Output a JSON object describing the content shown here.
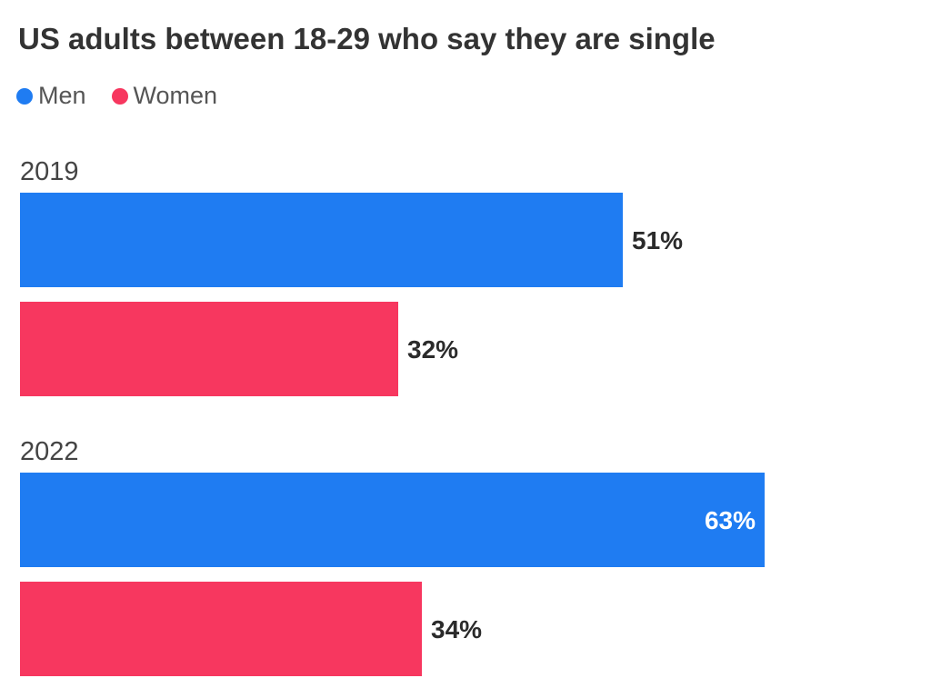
{
  "chart_data": {
    "type": "bar",
    "orientation": "horizontal",
    "title": "US adults between 18-29 who say they are single",
    "categories": [
      "2019",
      "2022"
    ],
    "series": [
      {
        "name": "Men",
        "values": [
          51,
          63
        ],
        "labels": [
          "51%",
          "63%"
        ],
        "color": "#1f7cf2"
      },
      {
        "name": "Women",
        "values": [
          32,
          34
        ],
        "labels": [
          "32%",
          "34%"
        ],
        "color": "#f7375f"
      }
    ],
    "xlim": [
      0,
      76
    ],
    "unit": "%",
    "legend_position": "top-left",
    "grid": false
  }
}
